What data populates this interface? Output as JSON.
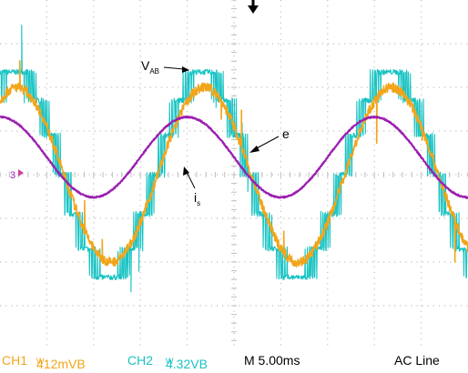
{
  "chart_data": {
    "type": "line",
    "title": "",
    "xlabel": "",
    "ylabel": "",
    "grid": true,
    "x_divisions": 10,
    "y_divisions": 8,
    "time_per_div_ms": 5.0,
    "trigger": "AC Line",
    "x_ms": [
      0,
      2.5,
      5,
      7.5,
      10,
      12.5,
      15,
      17.5,
      20,
      22.5,
      25,
      27.5,
      30,
      32.5,
      35,
      37.5,
      40,
      42.5,
      45,
      47.5,
      50
    ],
    "series": [
      {
        "name": "v_AB",
        "channel": "CH2",
        "color": "#19c3c3",
        "style": "multilevel-pwm",
        "amplitude_div": 2.35,
        "fundamental_period_ms": 20,
        "phase_deg": 60,
        "levels_div": [
          0,
          0.9,
          1.7,
          2.35
        ],
        "values_div": [
          2.04,
          2.35,
          1.17,
          -0.9,
          -2.04,
          -2.35,
          -1.17,
          0.9,
          2.04,
          2.35,
          1.17,
          -0.9,
          -2.04,
          -2.35,
          -1.17,
          0.9,
          2.04,
          2.35,
          1.17,
          -0.9,
          -2.04
        ]
      },
      {
        "name": "e",
        "channel": "CH1",
        "color": "#f2a51a",
        "style": "noisy-sine",
        "amplitude_div": 2.0,
        "fundamental_period_ms": 20,
        "phase_deg": 57,
        "values_div": [
          1.68,
          1.97,
          1.09,
          -0.7,
          -1.68,
          -1.97,
          -1.09,
          0.7,
          1.68,
          1.97,
          1.09,
          -0.7,
          -1.68,
          -1.97,
          -1.09,
          0.7,
          1.68,
          1.97,
          1.09,
          -0.7,
          -1.68
        ]
      },
      {
        "name": "i_s",
        "channel": "",
        "color": "#9b1fb0",
        "style": "sine",
        "amplitude_div": 0.92,
        "offset_div": 0.4,
        "fundamental_period_ms": 20,
        "phase_deg": 90,
        "values_div": [
          1.32,
          1.05,
          0.4,
          -0.25,
          -0.52,
          -0.25,
          0.4,
          1.05,
          1.32,
          1.05,
          0.4,
          -0.25,
          -0.52,
          -0.25,
          0.4,
          1.05,
          1.32,
          1.05,
          0.4,
          -0.25,
          -0.52
        ]
      }
    ],
    "annotations": [
      {
        "main": "V",
        "sub": "AB"
      },
      {
        "main": "e",
        "sub": ""
      },
      {
        "main": "i",
        "sub": "s"
      }
    ],
    "markers": {
      "ground_ref": "3",
      "trigger_position": "top-center"
    }
  },
  "status_bar": {
    "ch1_label": "CH1",
    "ch1_value": "412mVB",
    "ch1_suffix": "W",
    "ch2_label": "CH2",
    "ch2_value": "4.32VB",
    "ch2_suffix": "W",
    "timebase": "M 5.00ms",
    "trigger_source": "AC Line"
  },
  "colors": {
    "ch1": "#f2a51a",
    "ch2": "#19c3c3",
    "is": "#9b1fb0",
    "grid": "#bfbfbf",
    "text": "#000000"
  }
}
